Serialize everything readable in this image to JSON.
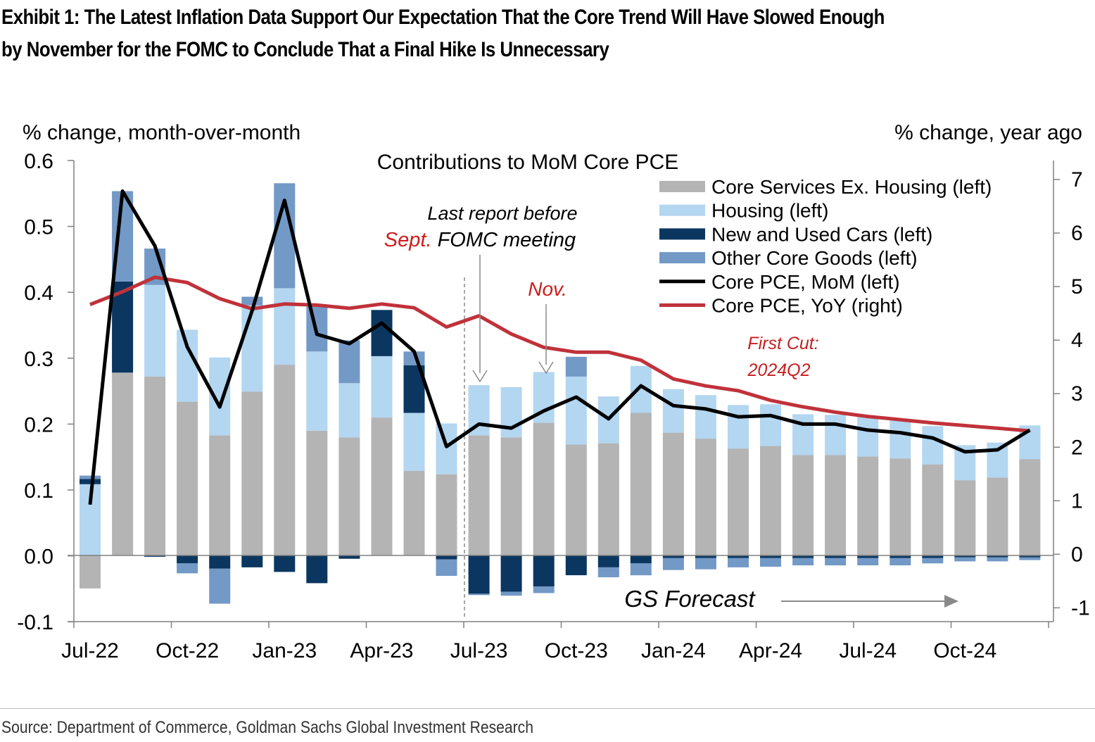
{
  "title": {
    "line1": "Exhibit 1: The Latest Inflation Data Support Our Expectation That the Core Trend Will Have Slowed Enough",
    "line2": "by November for the FOMC to Conclude That a Final Hike Is Unnecessary"
  },
  "source": "Source: Department of Commerce, Goldman Sachs Global Investment Research",
  "chart_data": {
    "type": "bar",
    "stacked": true,
    "title": "Contributions to MoM Core PCE",
    "left_axis_label": "% change, month-over-month",
    "right_axis_label": "% change, year ago",
    "ylim_left": [
      -0.1,
      0.6
    ],
    "ylim_right": [
      -1,
      7
    ],
    "left_ticks": [
      "0.6",
      "0.5",
      "0.4",
      "0.3",
      "0.2",
      "0.1",
      "0.0",
      "-0.1"
    ],
    "right_ticks": [
      "7",
      "6",
      "5",
      "4",
      "3",
      "2",
      "1",
      "0",
      "-1"
    ],
    "x_tick_labels": [
      "Jul-22",
      "Oct-22",
      "Jan-23",
      "Apr-23",
      "Jul-23",
      "Oct-23",
      "Jan-24",
      "Apr-24",
      "Jul-24",
      "Oct-24"
    ],
    "months": [
      "Jul-22",
      "Aug-22",
      "Sep-22",
      "Oct-22",
      "Nov-22",
      "Dec-22",
      "Jan-23",
      "Feb-23",
      "Mar-23",
      "Apr-23",
      "May-23",
      "Jun-23",
      "Jul-23",
      "Aug-23",
      "Sep-23",
      "Oct-23",
      "Nov-23",
      "Dec-23",
      "Jan-24",
      "Feb-24",
      "Mar-24",
      "Apr-24",
      "May-24",
      "Jun-24",
      "Jul-24",
      "Aug-24",
      "Sep-24",
      "Oct-24",
      "Nov-24",
      "Dec-24"
    ],
    "grid": false,
    "legend_position": "top-right",
    "series": [
      {
        "name": "Core Services Ex. Housing (left)",
        "color": "#b4b4b4",
        "values": [
          -0.05,
          0.277,
          0.271,
          0.233,
          0.182,
          0.248,
          0.289,
          0.189,
          0.179,
          0.209,
          0.128,
          0.123,
          0.182,
          0.179,
          0.201,
          0.168,
          0.17,
          0.216,
          0.186,
          0.177,
          0.162,
          0.166,
          0.152,
          0.152,
          0.15,
          0.147,
          0.138,
          0.114,
          0.118,
          0.146
        ]
      },
      {
        "name": "Housing (left)",
        "color": "#b3d6f1",
        "values": [
          0.108,
          0.0,
          0.139,
          0.109,
          0.118,
          0.131,
          0.116,
          0.12,
          0.082,
          0.093,
          0.088,
          0.077,
          0.076,
          0.076,
          0.077,
          0.103,
          0.071,
          0.071,
          0.066,
          0.066,
          0.066,
          0.063,
          0.062,
          0.061,
          0.06,
          0.058,
          0.058,
          0.053,
          0.053,
          0.051
        ]
      },
      {
        "name": "New and Used Cars (left)",
        "color": "#0b3660",
        "values": [
          0.008,
          0.138,
          -0.002,
          -0.012,
          -0.02,
          -0.018,
          -0.025,
          -0.042,
          -0.005,
          0.07,
          0.072,
          -0.006,
          -0.058,
          -0.055,
          -0.047,
          -0.03,
          -0.018,
          -0.012,
          -0.004,
          -0.004,
          -0.004,
          -0.004,
          -0.004,
          -0.004,
          -0.004,
          -0.004,
          -0.004,
          -0.003,
          -0.003,
          -0.003
        ]
      },
      {
        "name": "Other Core Goods (left)",
        "color": "#7399c6",
        "values": [
          0.005,
          0.137,
          0.055,
          -0.015,
          -0.053,
          0.013,
          0.159,
          0.07,
          0.065,
          0.0,
          0.021,
          -0.025,
          -0.002,
          -0.006,
          -0.01,
          0.03,
          -0.015,
          -0.018,
          -0.018,
          -0.017,
          -0.014,
          -0.013,
          -0.011,
          -0.011,
          -0.011,
          -0.011,
          -0.008,
          -0.006,
          -0.006,
          -0.004
        ]
      },
      {
        "name": "Core PCE, MoM (left)",
        "color": "#000000",
        "type": "line",
        "axis": "left",
        "values": [
          0.077,
          0.552,
          0.469,
          0.316,
          0.225,
          0.371,
          0.538,
          0.335,
          0.321,
          0.352,
          0.309,
          0.165,
          0.199,
          0.193,
          0.219,
          0.24,
          0.207,
          0.257,
          0.227,
          0.222,
          0.21,
          0.212,
          0.199,
          0.199,
          0.19,
          0.186,
          0.178,
          0.157,
          0.16,
          0.19
        ]
      },
      {
        "name": "Core PCE, YoY (right)",
        "color": "#c0323a",
        "type": "line",
        "axis": "right",
        "values": [
          4.66,
          4.9,
          5.17,
          5.07,
          4.77,
          4.58,
          4.67,
          4.65,
          4.59,
          4.67,
          4.6,
          4.24,
          4.45,
          4.11,
          3.86,
          3.77,
          3.77,
          3.62,
          3.27,
          3.14,
          3.05,
          2.87,
          2.75,
          2.65,
          2.57,
          2.51,
          2.45,
          2.4,
          2.35,
          2.3
        ]
      }
    ],
    "annotations": [
      {
        "text": "Last report before",
        "style": "italic"
      },
      {
        "text_red": "Sept.",
        "text": " FOMC meeting",
        "style": "italic"
      },
      {
        "text": "Nov.",
        "style": "italic",
        "color": "#d01c1c"
      },
      {
        "line1": "First Cut:",
        "line2": "2024Q2",
        "style": "italic",
        "color": "#c81e1e"
      },
      {
        "text": "GS Forecast",
        "style": "italic"
      }
    ]
  }
}
